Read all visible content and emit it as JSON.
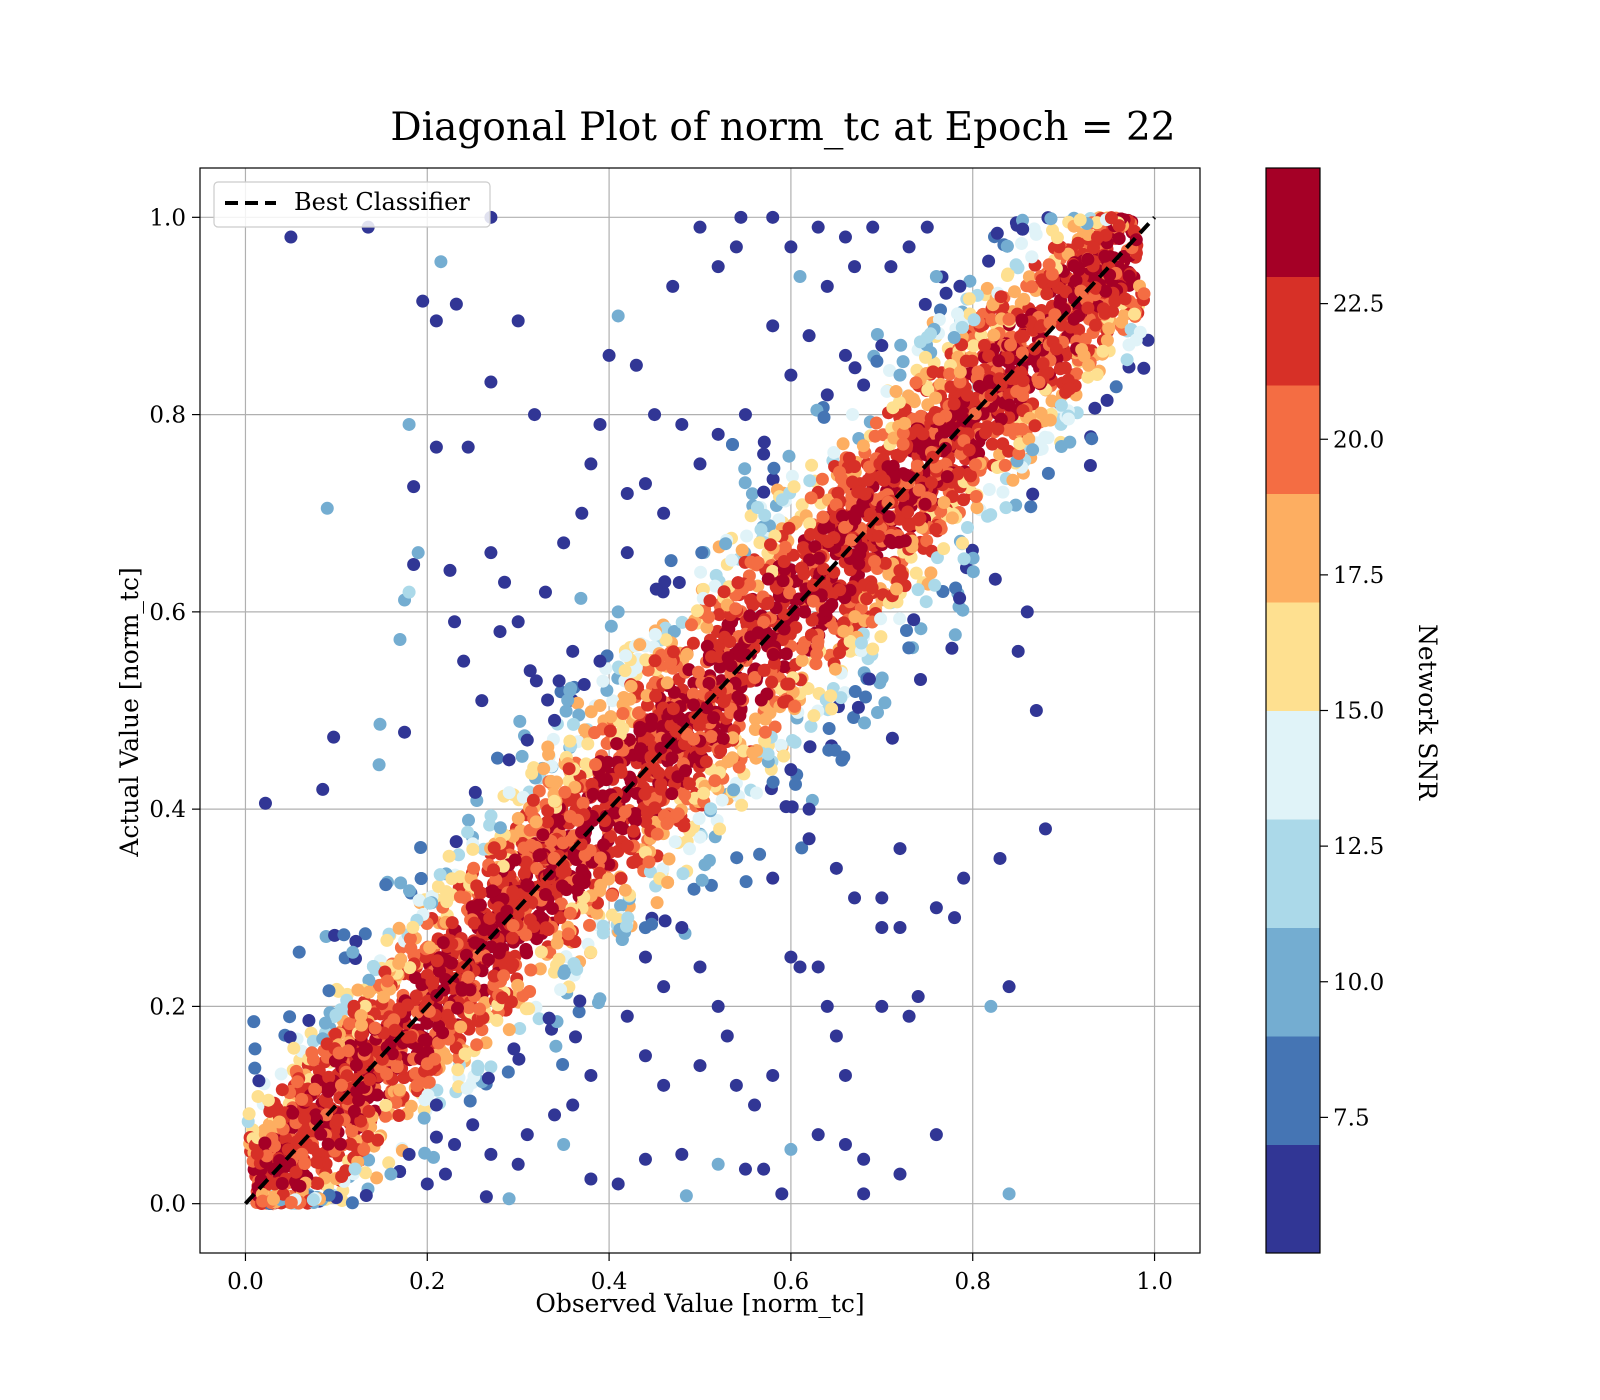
{
  "chart_data": {
    "type": "scatter",
    "title": "Diagonal Plot of norm_tc at Epoch = 22",
    "xlabel": "Observed Value [norm_tc]",
    "ylabel": "Actual Value [norm_tc]",
    "xlim": [
      -0.05,
      1.05
    ],
    "ylim": [
      -0.05,
      1.05
    ],
    "xticks": [
      0.0,
      0.2,
      0.4,
      0.6,
      0.8,
      1.0
    ],
    "xtick_labels": [
      "0.0",
      "0.2",
      "0.4",
      "0.6",
      "0.8",
      "1.0"
    ],
    "yticks": [
      0.0,
      0.2,
      0.4,
      0.6,
      0.8,
      1.0
    ],
    "ytick_labels": [
      "0.0",
      "0.2",
      "0.4",
      "0.6",
      "0.8",
      "1.0"
    ],
    "grid": true,
    "legend": {
      "placement": "top-left",
      "entries": [
        {
          "label": "Best Classifier",
          "style": "dashed",
          "color": "#000000"
        }
      ]
    },
    "reference_line": {
      "label": "Best Classifier",
      "x": [
        0.0,
        1.0
      ],
      "y": [
        0.0,
        1.0
      ]
    },
    "colorbar": {
      "label": "Network SNR",
      "range": [
        5.0,
        25.0
      ],
      "ticks": [
        7.5,
        10.0,
        12.5,
        15.0,
        17.5,
        20.0,
        22.5
      ],
      "tick_labels": [
        "7.5",
        "10.0",
        "12.5",
        "15.0",
        "17.5",
        "20.0",
        "22.5"
      ],
      "colors": [
        "#313695",
        "#4575b4",
        "#74add1",
        "#abd9e9",
        "#e0f3f8",
        "#fee090",
        "#fdae61",
        "#f46d43",
        "#d73027",
        "#a50026"
      ],
      "cmap": "RdYlBu_r"
    },
    "series": [
      {
        "style": "scatter",
        "c_label": "Network SNR",
        "points": [
          [
            0.05,
            0.98,
            6
          ],
          [
            0.135,
            0.99,
            6
          ],
          [
            0.27,
            1.0,
            6
          ],
          [
            0.215,
            0.955,
            10
          ],
          [
            0.195,
            0.915,
            6
          ],
          [
            0.232,
            0.912,
            6
          ],
          [
            0.21,
            0.895,
            6
          ],
          [
            0.3,
            0.895,
            6
          ],
          [
            0.27,
            0.833,
            6
          ],
          [
            0.318,
            0.8,
            6
          ],
          [
            0.18,
            0.79,
            10
          ],
          [
            0.21,
            0.767,
            6
          ],
          [
            0.245,
            0.767,
            6
          ],
          [
            0.185,
            0.727,
            6
          ],
          [
            0.09,
            0.705,
            10
          ],
          [
            0.185,
            0.648,
            6
          ],
          [
            0.19,
            0.66,
            10
          ],
          [
            0.175,
            0.612,
            10
          ],
          [
            0.18,
            0.62,
            12
          ],
          [
            0.225,
            0.642,
            6
          ],
          [
            0.17,
            0.572,
            10
          ],
          [
            0.097,
            0.473,
            6
          ],
          [
            0.148,
            0.486,
            10
          ],
          [
            0.175,
            0.478,
            6
          ],
          [
            0.147,
            0.445,
            10
          ],
          [
            0.085,
            0.42,
            6
          ],
          [
            0.022,
            0.406,
            6
          ],
          [
            0.27,
            0.66,
            6
          ],
          [
            0.285,
            0.63,
            6
          ],
          [
            0.3,
            0.59,
            6
          ],
          [
            0.32,
            0.53,
            6
          ],
          [
            0.345,
            0.53,
            6
          ],
          [
            0.38,
            0.75,
            6
          ],
          [
            0.39,
            0.79,
            6
          ],
          [
            0.4,
            0.86,
            6
          ],
          [
            0.41,
            0.9,
            10
          ],
          [
            0.43,
            0.85,
            6
          ],
          [
            0.45,
            0.8,
            6
          ],
          [
            0.47,
            0.93,
            6
          ],
          [
            0.5,
            0.99,
            6
          ],
          [
            0.52,
            0.95,
            6
          ],
          [
            0.54,
            0.97,
            6
          ],
          [
            0.545,
            1.0,
            6
          ],
          [
            0.58,
            1.0,
            6
          ],
          [
            0.6,
            0.97,
            6
          ],
          [
            0.61,
            0.94,
            10
          ],
          [
            0.63,
            0.99,
            6
          ],
          [
            0.64,
            0.93,
            6
          ],
          [
            0.66,
            0.98,
            6
          ],
          [
            0.67,
            0.95,
            6
          ],
          [
            0.69,
            0.99,
            6
          ],
          [
            0.71,
            0.95,
            6
          ],
          [
            0.73,
            0.97,
            6
          ],
          [
            0.75,
            0.99,
            6
          ],
          [
            0.76,
            0.94,
            10
          ],
          [
            0.58,
            0.89,
            6
          ],
          [
            0.6,
            0.84,
            6
          ],
          [
            0.62,
            0.88,
            6
          ],
          [
            0.64,
            0.82,
            6
          ],
          [
            0.66,
            0.86,
            6
          ],
          [
            0.68,
            0.83,
            6
          ],
          [
            0.7,
            0.87,
            6
          ],
          [
            0.72,
            0.84,
            10
          ],
          [
            0.55,
            0.8,
            6
          ],
          [
            0.57,
            0.76,
            6
          ],
          [
            0.52,
            0.78,
            6
          ],
          [
            0.5,
            0.75,
            6
          ],
          [
            0.48,
            0.79,
            6
          ],
          [
            0.46,
            0.7,
            6
          ],
          [
            0.44,
            0.73,
            6
          ],
          [
            0.42,
            0.66,
            6
          ],
          [
            0.41,
            0.6,
            10
          ],
          [
            0.39,
            0.55,
            6
          ],
          [
            0.36,
            0.56,
            6
          ],
          [
            0.34,
            0.49,
            6
          ],
          [
            0.31,
            0.47,
            6
          ],
          [
            0.29,
            0.45,
            6
          ],
          [
            0.26,
            0.51,
            6
          ],
          [
            0.24,
            0.55,
            6
          ],
          [
            0.23,
            0.59,
            6
          ],
          [
            0.28,
            0.58,
            6
          ],
          [
            0.33,
            0.62,
            6
          ],
          [
            0.35,
            0.67,
            6
          ],
          [
            0.37,
            0.7,
            6
          ],
          [
            0.42,
            0.72,
            6
          ],
          [
            0.84,
            0.22,
            6
          ],
          [
            0.82,
            0.2,
            10
          ],
          [
            0.83,
            0.35,
            6
          ],
          [
            0.88,
            0.38,
            6
          ],
          [
            0.87,
            0.5,
            6
          ],
          [
            0.85,
            0.56,
            6
          ],
          [
            0.86,
            0.6,
            6
          ],
          [
            0.84,
            0.01,
            10
          ],
          [
            0.68,
            0.01,
            6
          ],
          [
            0.59,
            0.01,
            6
          ],
          [
            0.485,
            0.008,
            10
          ],
          [
            0.41,
            0.02,
            6
          ],
          [
            0.38,
            0.025,
            6
          ],
          [
            0.29,
            0.005,
            10
          ],
          [
            0.265,
            0.007,
            6
          ],
          [
            0.44,
            0.045,
            6
          ],
          [
            0.48,
            0.05,
            6
          ],
          [
            0.52,
            0.04,
            10
          ],
          [
            0.55,
            0.035,
            6
          ],
          [
            0.57,
            0.035,
            6
          ],
          [
            0.6,
            0.055,
            10
          ],
          [
            0.63,
            0.07,
            6
          ],
          [
            0.66,
            0.06,
            6
          ],
          [
            0.68,
            0.045,
            6
          ],
          [
            0.72,
            0.03,
            6
          ],
          [
            0.76,
            0.07,
            6
          ],
          [
            0.72,
            0.36,
            6
          ],
          [
            0.7,
            0.31,
            6
          ],
          [
            0.67,
            0.31,
            6
          ],
          [
            0.65,
            0.34,
            6
          ],
          [
            0.62,
            0.4,
            6
          ],
          [
            0.6,
            0.44,
            6
          ],
          [
            0.62,
            0.37,
            6
          ],
          [
            0.58,
            0.33,
            6
          ],
          [
            0.6,
            0.25,
            6
          ],
          [
            0.61,
            0.24,
            6
          ],
          [
            0.63,
            0.24,
            6
          ],
          [
            0.64,
            0.2,
            6
          ],
          [
            0.65,
            0.17,
            6
          ],
          [
            0.66,
            0.13,
            6
          ],
          [
            0.7,
            0.2,
            6
          ],
          [
            0.74,
            0.21,
            6
          ],
          [
            0.72,
            0.28,
            6
          ],
          [
            0.7,
            0.28,
            6
          ],
          [
            0.76,
            0.3,
            6
          ],
          [
            0.78,
            0.29,
            6
          ],
          [
            0.79,
            0.33,
            6
          ],
          [
            0.73,
            0.19,
            6
          ],
          [
            0.53,
            0.17,
            6
          ],
          [
            0.52,
            0.2,
            6
          ],
          [
            0.5,
            0.24,
            6
          ],
          [
            0.48,
            0.28,
            6
          ],
          [
            0.46,
            0.22,
            6
          ],
          [
            0.44,
            0.25,
            6
          ],
          [
            0.42,
            0.19,
            6
          ],
          [
            0.44,
            0.15,
            6
          ],
          [
            0.46,
            0.12,
            6
          ],
          [
            0.5,
            0.14,
            6
          ],
          [
            0.54,
            0.12,
            6
          ],
          [
            0.56,
            0.1,
            6
          ],
          [
            0.58,
            0.13,
            6
          ],
          [
            0.38,
            0.13,
            6
          ],
          [
            0.36,
            0.1,
            6
          ],
          [
            0.34,
            0.09,
            6
          ],
          [
            0.35,
            0.06,
            10
          ],
          [
            0.31,
            0.07,
            6
          ],
          [
            0.3,
            0.04,
            6
          ],
          [
            0.27,
            0.05,
            6
          ],
          [
            0.25,
            0.08,
            6
          ],
          [
            0.23,
            0.06,
            6
          ],
          [
            0.21,
            0.1,
            6
          ],
          [
            0.22,
            0.03,
            6
          ],
          [
            0.18,
            0.05,
            6
          ],
          [
            0.2,
            0.02,
            6
          ],
          [
            0.16,
            0.03,
            10
          ]
        ]
      }
    ]
  }
}
